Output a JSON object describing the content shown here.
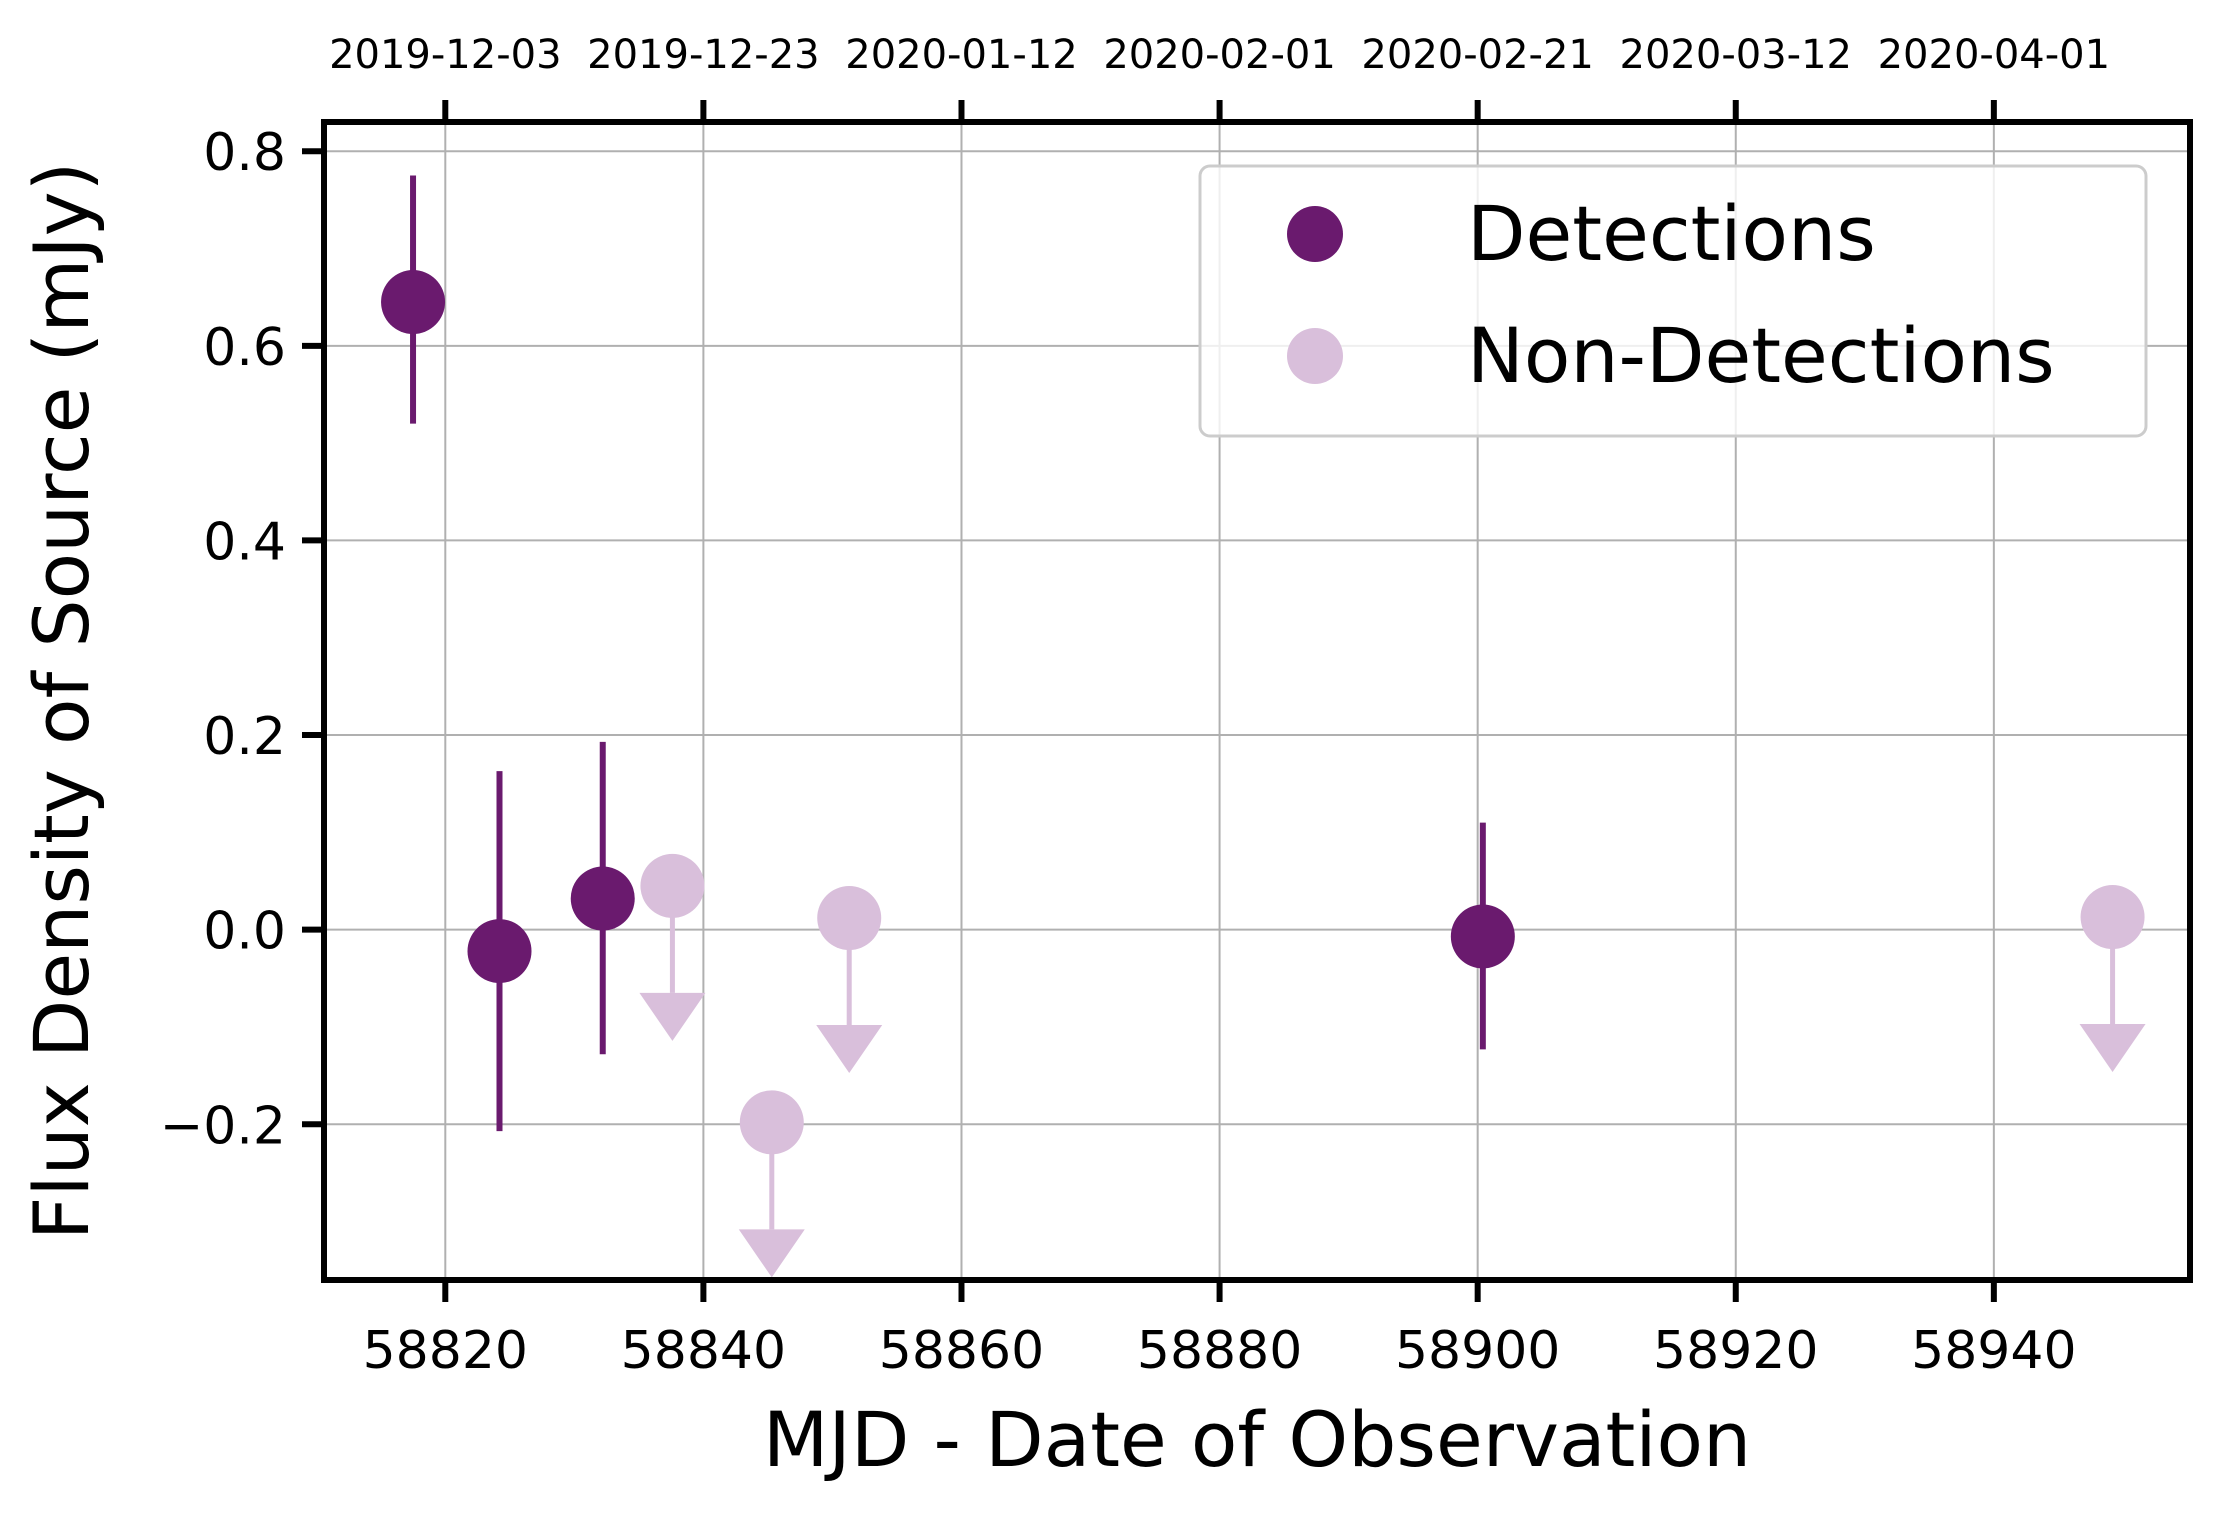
{
  "chart_data": {
    "type": "scatter",
    "title": "",
    "xlabel": "MJD - Date of Observation",
    "ylabel": "Flux Density of Source (mJy)",
    "xlim": [
      58810.6,
      58955.2
    ],
    "ylim": [
      -0.36,
      0.83
    ],
    "grid": true,
    "legend_placement": "top-right",
    "x_ticks": [
      58820,
      58840,
      58860,
      58880,
      58900,
      58920,
      58940
    ],
    "y_ticks": [
      -0.2,
      0.0,
      0.2,
      0.4,
      0.6,
      0.8
    ],
    "y_tick_labels": [
      "−0.2",
      "0.0",
      "0.2",
      "0.4",
      "0.6",
      "0.8"
    ],
    "top_ticks": [
      {
        "x": 58820,
        "label": "2019-12-03"
      },
      {
        "x": 58840,
        "label": "2019-12-23"
      },
      {
        "x": 58860,
        "label": "2020-01-12"
      },
      {
        "x": 58880,
        "label": "2020-02-01"
      },
      {
        "x": 58900,
        "label": "2020-02-21"
      },
      {
        "x": 58920,
        "label": "2020-03-12"
      },
      {
        "x": 58940,
        "label": "2020-04-01"
      }
    ],
    "series": [
      {
        "name": "Detections",
        "color": "#6a1a6e",
        "marker": "circle",
        "points": [
          {
            "x": 58817.5,
            "y": 0.645,
            "yerr_low": 0.52,
            "yerr_high": 0.775
          },
          {
            "x": 58824.2,
            "y": -0.022,
            "yerr_low": -0.207,
            "yerr_high": 0.163
          },
          {
            "x": 58832.2,
            "y": 0.032,
            "yerr_low": -0.128,
            "yerr_high": 0.193
          },
          {
            "x": 58900.4,
            "y": -0.007,
            "yerr_low": -0.123,
            "yerr_high": 0.11
          }
        ]
      },
      {
        "name": "Non-Detections",
        "color": "#d9bfdb",
        "marker": "circle",
        "upper_limit": true,
        "points": [
          {
            "x": 58837.6,
            "y": 0.045
          },
          {
            "x": 58845.3,
            "y": -0.198
          },
          {
            "x": 58851.3,
            "y": 0.012
          },
          {
            "x": 58949.2,
            "y": 0.013
          }
        ]
      }
    ],
    "legend": [
      {
        "label": "Detections",
        "color": "#6a1a6e"
      },
      {
        "label": "Non-Detections",
        "color": "#d9bfdb"
      }
    ]
  }
}
